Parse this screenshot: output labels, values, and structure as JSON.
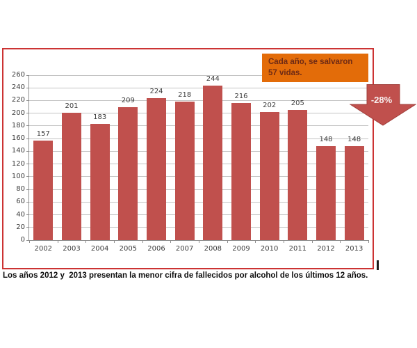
{
  "frame": {
    "border_color": "#cc3333"
  },
  "chart_data": {
    "type": "bar",
    "title": "",
    "xlabel": "",
    "ylabel": "",
    "categories": [
      "2002",
      "2003",
      "2004",
      "2005",
      "2006",
      "2007",
      "2008",
      "2009",
      "2010",
      "2011",
      "2012",
      "2013"
    ],
    "values": [
      157,
      201,
      183,
      209,
      224,
      218,
      244,
      216,
      202,
      205,
      148,
      148
    ],
    "ylim": [
      0,
      260
    ],
    "ytick_step": 20,
    "grid": true,
    "legend": false,
    "colors": {
      "bar": "#c0504d",
      "grid": "#c3c3c3",
      "axis": "#8c8c8c",
      "tick_label": "#3b3b3b"
    }
  },
  "callout": {
    "line1": "Cada año, se salvaron",
    "line2": "57 vidas.",
    "bg_color": "#e36c09",
    "text_color": "#6e2a15"
  },
  "arrow": {
    "label": "-28%",
    "color": "#c0504d",
    "edge_color": "#a03f3b",
    "label_color": "#f7efee"
  },
  "caption": {
    "text": "Los años 2012 y  2013 presentan la menor cifra de fallecidos por alcohol de los últimos 12 años."
  }
}
